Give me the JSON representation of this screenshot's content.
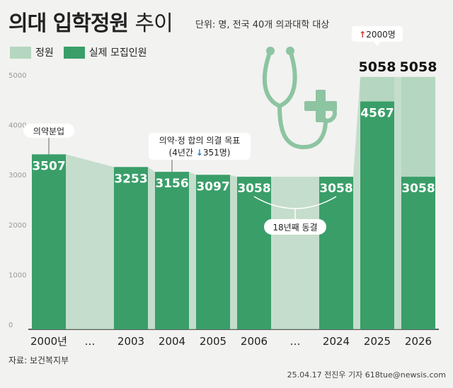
{
  "header": {
    "title_bold": "의대 입학정원",
    "title_light": "추이",
    "unit": "단위: 명, 전국 40개 의과대학 대상"
  },
  "legend": {
    "quota": "정원",
    "actual": "실제 모집인원"
  },
  "colors": {
    "quota": "#b5d6c0",
    "actual": "#3a9e69",
    "background": "#f2f2f0",
    "arrow_up": "#d9302c",
    "arrow_down": "#2a7fc0",
    "axis_text": "#999999"
  },
  "chart_data": {
    "type": "bar",
    "categories": [
      "2000년",
      "…",
      "2003",
      "2004",
      "2005",
      "2006",
      "…",
      "2024",
      "2025",
      "2026"
    ],
    "ylim": [
      0,
      5000
    ],
    "yticks": [
      "0",
      "1000",
      "2000",
      "3000",
      "4000",
      "5000"
    ],
    "series": [
      {
        "name": "정원",
        "values": [
          3507,
          null,
          3253,
          3156,
          3097,
          3058,
          null,
          3058,
          5058,
          5058
        ]
      },
      {
        "name": "실제 모집인원",
        "values": [
          3507,
          null,
          3253,
          3156,
          3097,
          3058,
          null,
          3058,
          4567,
          3058
        ]
      }
    ],
    "annotations": {
      "first": "의약분업",
      "agreement_line1": "의약·정 합의 의결 목표",
      "agreement_line2_pre": "(4년간",
      "agreement_line2_post": "351명)",
      "freeze": "18년째 동결",
      "increase": "2000명"
    }
  },
  "footer": {
    "source": "자료: 보건복지부",
    "credit": "25.04.17 전진우 기자 618tue@newsis.com"
  }
}
